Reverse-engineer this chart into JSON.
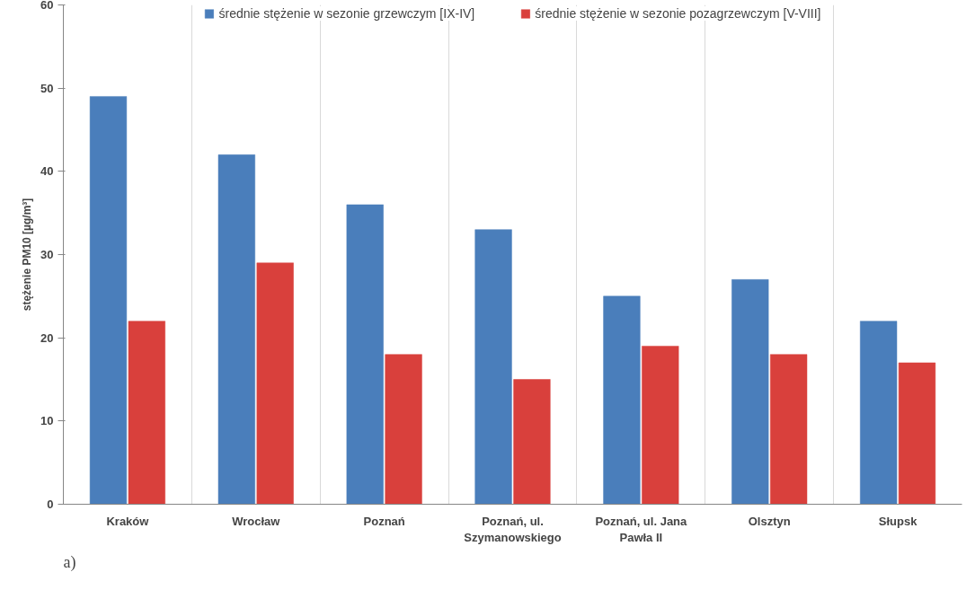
{
  "chart_data": {
    "type": "bar",
    "ylabel": "stężenie PM10 [µg/m³]",
    "categories": [
      "Kraków",
      "Wrocław",
      "Poznań",
      "Poznań, ul. Szymanowskiego",
      "Poznań, ul. Jana Pawła II",
      "Olsztyn",
      "Słupsk"
    ],
    "series": [
      {
        "name": "średnie stężenie w sezonie grzewczym [IX-IV]",
        "color": "#4a7ebb",
        "values": [
          49,
          42,
          36,
          33,
          25,
          27,
          22
        ]
      },
      {
        "name": "średnie stężenie w sezonie pozagrzewczym [V-VIII]",
        "color": "#d9403c",
        "values": [
          22,
          29,
          18,
          15,
          19,
          18,
          17
        ]
      }
    ],
    "ylim": [
      0,
      60
    ],
    "yticks": [
      0,
      10,
      20,
      30,
      40,
      50,
      60
    ],
    "grid": "x",
    "legend": "top",
    "annotations": [
      "a)"
    ]
  }
}
